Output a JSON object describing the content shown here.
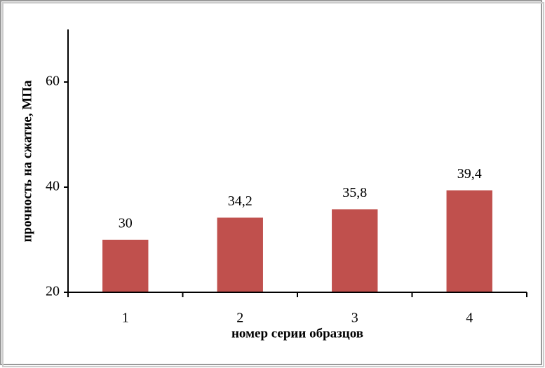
{
  "chart_data": {
    "type": "bar",
    "x_label": "номер серии  образцов",
    "y_label": "прочность на сжатие, МПа",
    "categories": [
      "1",
      "2",
      "3",
      "4"
    ],
    "values": [
      30,
      34.2,
      35.8,
      39.4
    ],
    "value_labels": [
      "30",
      "34,2",
      "35,8",
      "39,4"
    ],
    "color": "#c0504d",
    "ylim": [
      20,
      70
    ],
    "yticks": [
      20,
      40,
      60
    ],
    "grid": false
  }
}
